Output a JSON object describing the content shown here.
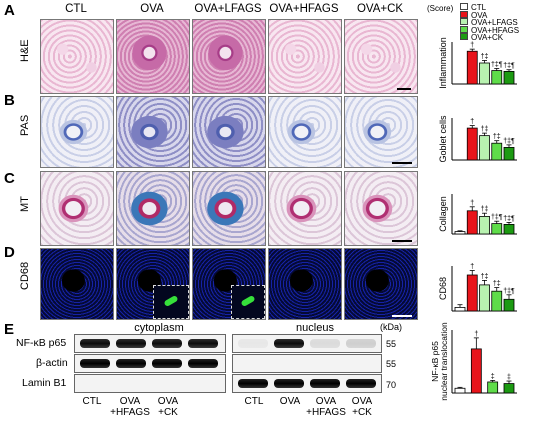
{
  "panels": {
    "a": "A",
    "b": "B",
    "c": "C",
    "d": "D",
    "e": "E"
  },
  "groups": [
    "CTL",
    "OVA",
    "OVA+LFAGS",
    "OVA+HFAGS",
    "OVA+CK"
  ],
  "stains": {
    "he": "H&E",
    "pas": "PAS",
    "mt": "MT",
    "cd": "CD68"
  },
  "score_label": "(Score)",
  "legend": [
    {
      "label": "CTL",
      "color": "#ffffff"
    },
    {
      "label": "OVA",
      "color": "#e8141b"
    },
    {
      "label": "OVA+LFAGS",
      "color": "#b8f2b0"
    },
    {
      "label": "OVA+HFAGS",
      "color": "#5fdc4a"
    },
    {
      "label": "OVA+CK",
      "color": "#1c9a12"
    }
  ],
  "chart_data": [
    {
      "type": "bar",
      "ylabel": "Inflammation",
      "categories": [
        "CTL",
        "OVA",
        "OVA+LFAGS",
        "OVA+HFAGS",
        "OVA+CK"
      ],
      "values": [
        0,
        3.9,
        2.5,
        1.6,
        1.5
      ],
      "errors": [
        0,
        0.25,
        0.3,
        0.25,
        0.2
      ],
      "marks": [
        "",
        "†",
        "†‡",
        "†‡¶",
        "†‡¶"
      ]
    },
    {
      "type": "bar",
      "ylabel": "Goblet cells",
      "categories": [
        "CTL",
        "OVA",
        "OVA+LFAGS",
        "OVA+HFAGS",
        "OVA+CK"
      ],
      "values": [
        0,
        3.8,
        2.9,
        2.0,
        1.5
      ],
      "errors": [
        0,
        0.3,
        0.3,
        0.3,
        0.3
      ],
      "marks": [
        "",
        "†",
        "†‡",
        "†‡",
        "†‡¶"
      ]
    },
    {
      "type": "bar",
      "ylabel": "Collagen",
      "categories": [
        "CTL",
        "OVA",
        "OVA+LFAGS",
        "OVA+HFAGS",
        "OVA+CK"
      ],
      "values": [
        0.3,
        2.9,
        2.2,
        1.3,
        1.2
      ],
      "errors": [
        0.1,
        0.5,
        0.4,
        0.3,
        0.25
      ],
      "marks": [
        "",
        "†",
        "†‡",
        "†‡¶",
        "†‡¶"
      ]
    },
    {
      "type": "bar",
      "ylabel": "CD68",
      "categories": [
        "CTL",
        "OVA",
        "OVA+LFAGS",
        "OVA+HFAGS",
        "OVA+CK"
      ],
      "values": [
        0.4,
        4.0,
        2.9,
        2.2,
        1.3
      ],
      "errors": [
        0.3,
        0.5,
        0.5,
        0.4,
        0.5
      ],
      "marks": [
        "",
        "†",
        "†‡",
        "†‡",
        "†‡¶"
      ]
    },
    {
      "type": "bar",
      "ylabel": "NF-κB p65 nuclear translocation",
      "categories": [
        "CTL",
        "OVA",
        "OVA+HFAGS",
        "OVA+CK"
      ],
      "values": [
        0.15,
        1.4,
        0.35,
        0.3
      ],
      "errors": [
        0.03,
        0.35,
        0.05,
        0.08
      ],
      "marks": [
        "",
        "†",
        "‡",
        "‡"
      ],
      "colors": [
        "#ffffff",
        "#e8141b",
        "#5fdc4a",
        "#1c9a12"
      ]
    }
  ],
  "blot": {
    "cytoplasm": "cytoplasm",
    "nucleus": "nucleus",
    "kda": "(kDa)",
    "rows": [
      "NF-κB p65",
      "β-actin",
      "Lamin B1"
    ],
    "ticks": [
      "55",
      "55",
      "70"
    ],
    "lanes": [
      [
        "CTL",
        ""
      ],
      [
        "OVA",
        "+HFAGS"
      ],
      [
        "OVA",
        "+CK"
      ],
      [
        "CTL",
        ""
      ],
      [
        "OVA",
        ""
      ],
      [
        "OVA",
        "+HFAGS"
      ],
      [
        "OVA",
        "+CK"
      ]
    ],
    "intensity": {
      "cyto_p65": [
        0.95,
        0.95,
        0.95,
        0.95
      ],
      "cyto_actin": [
        1,
        1,
        1,
        1
      ],
      "cyto_lamin": [
        0,
        0,
        0,
        0
      ],
      "nuc_p65": [
        0.05,
        0.95,
        0.1,
        0.15
      ],
      "nuc_actin": [
        0,
        0,
        0,
        0
      ],
      "nuc_lamin": [
        1,
        1,
        1,
        1
      ]
    }
  }
}
